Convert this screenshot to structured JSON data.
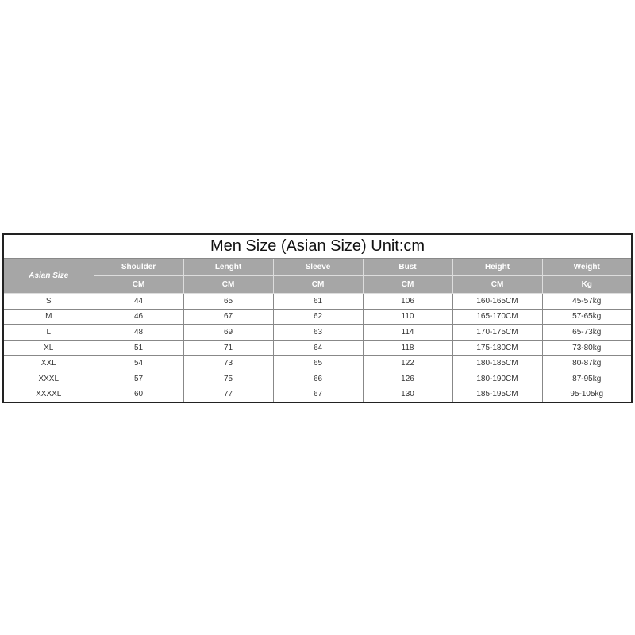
{
  "title": "Men Size (Asian Size) Unit:cm",
  "size_header": "Asian Size",
  "columns": [
    {
      "name": "Shoulder",
      "unit": "CM"
    },
    {
      "name": "Lenght",
      "unit": "CM"
    },
    {
      "name": "Sleeve",
      "unit": "CM"
    },
    {
      "name": "Bust",
      "unit": "CM"
    },
    {
      "name": "Height",
      "unit": "CM"
    },
    {
      "name": "Weight",
      "unit": "Kg"
    }
  ],
  "rows": [
    [
      "S",
      "44",
      "65",
      "61",
      "106",
      "160-165CM",
      "45-57kg"
    ],
    [
      "M",
      "46",
      "67",
      "62",
      "110",
      "165-170CM",
      "57-65kg"
    ],
    [
      "L",
      "48",
      "69",
      "63",
      "114",
      "170-175CM",
      "65-73kg"
    ],
    [
      "XL",
      "51",
      "71",
      "64",
      "118",
      "175-180CM",
      "73-80kg"
    ],
    [
      "XXL",
      "54",
      "73",
      "65",
      "122",
      "180-185CM",
      "80-87kg"
    ],
    [
      "XXXL",
      "57",
      "75",
      "66",
      "126",
      "180-190CM",
      "87-95kg"
    ],
    [
      "XXXXL",
      "60",
      "77",
      "67",
      "130",
      "185-195CM",
      "95-105kg"
    ]
  ]
}
